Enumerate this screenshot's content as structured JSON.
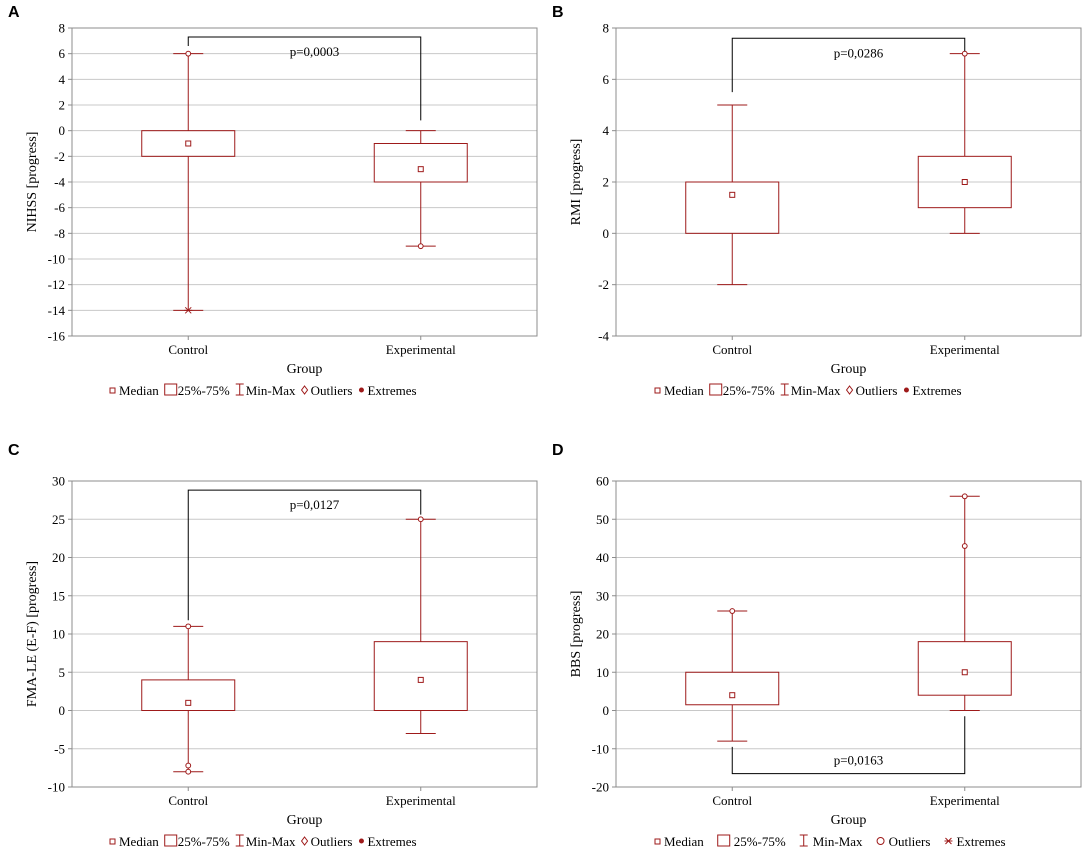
{
  "chart_data": [
    {
      "type": "boxplot",
      "panel": "A",
      "ylabel": "NIHSS [progress]",
      "xlabel": "Group",
      "categories": [
        "Control",
        "Experimental"
      ],
      "ylim": [
        -16,
        8
      ],
      "yticks": [
        -16,
        -14,
        -12,
        -10,
        -8,
        -6,
        -4,
        -2,
        0,
        2,
        4,
        6,
        8
      ],
      "grid": true,
      "boxes": [
        {
          "group": "Control",
          "median": -1,
          "q1": -2,
          "q3": 0,
          "min": -14,
          "max": 6
        },
        {
          "group": "Experimental",
          "median": -3,
          "q1": -4,
          "q3": -1,
          "min": -9,
          "max": 0
        }
      ],
      "outliers": [
        {
          "group": "Control",
          "value": 6
        },
        {
          "group": "Experimental",
          "value": -9
        }
      ],
      "extremes": [
        {
          "group": "Control",
          "value": -14
        }
      ],
      "bracket": {
        "text": "p=0,0003",
        "level": 7.3,
        "control_end": 6.6,
        "experimental_end": 0.8,
        "side": "top"
      },
      "legend": [
        "Median",
        "25%-75%",
        "Min-Max",
        "Outliers",
        "Extremes"
      ]
    },
    {
      "type": "boxplot",
      "panel": "B",
      "ylabel": "RMI [progress]",
      "xlabel": "Group",
      "categories": [
        "Control",
        "Experimental"
      ],
      "ylim": [
        -4,
        8
      ],
      "yticks": [
        -4,
        -2,
        0,
        2,
        4,
        6,
        8
      ],
      "grid": true,
      "boxes": [
        {
          "group": "Control",
          "median": 1.5,
          "q1": 0,
          "q3": 2,
          "min": -2,
          "max": 5
        },
        {
          "group": "Experimental",
          "median": 2,
          "q1": 1,
          "q3": 3,
          "min": 0,
          "max": 7
        }
      ],
      "outliers": [
        {
          "group": "Experimental",
          "value": 7
        }
      ],
      "extremes": [],
      "bracket": {
        "text": "p=0,0286",
        "level": 7.6,
        "control_end": 5.5,
        "experimental_end": 7.1,
        "side": "top"
      },
      "legend": [
        "Median",
        "25%-75%",
        "Min-Max",
        "Outliers",
        "Extremes"
      ]
    },
    {
      "type": "boxplot",
      "panel": "C",
      "ylabel": "FMA-LE (E-F) [progress]",
      "xlabel": "Group",
      "categories": [
        "Control",
        "Experimental"
      ],
      "ylim": [
        -10,
        30
      ],
      "yticks": [
        -10,
        -5,
        0,
        5,
        10,
        15,
        20,
        25,
        30
      ],
      "grid": true,
      "boxes": [
        {
          "group": "Control",
          "median": 1,
          "q1": 0,
          "q3": 4,
          "min": -8,
          "max": 11
        },
        {
          "group": "Experimental",
          "median": 4,
          "q1": 0,
          "q3": 9,
          "min": -3,
          "max": 25
        }
      ],
      "outliers": [
        {
          "group": "Control",
          "value": 11
        },
        {
          "group": "Control",
          "value": -7.2
        },
        {
          "group": "Control",
          "value": -8
        },
        {
          "group": "Experimental",
          "value": 25
        }
      ],
      "extremes": [],
      "bracket": {
        "text": "p=0,0127",
        "level": 28.8,
        "control_end": 11.8,
        "experimental_end": 25.6,
        "side": "top"
      },
      "legend": [
        "Median",
        "25%-75%",
        "Min-Max",
        "Outliers",
        "Extremes"
      ]
    },
    {
      "type": "boxplot",
      "panel": "D",
      "ylabel": "BBS [progress]",
      "xlabel": "Group",
      "categories": [
        "Control",
        "Experimental"
      ],
      "ylim": [
        -20,
        60
      ],
      "yticks": [
        -20,
        -10,
        0,
        10,
        20,
        30,
        40,
        50,
        60
      ],
      "grid": true,
      "boxes": [
        {
          "group": "Control",
          "median": 4,
          "q1": 1.5,
          "q3": 10,
          "min": -8,
          "max": 26
        },
        {
          "group": "Experimental",
          "median": 10,
          "q1": 4,
          "q3": 18,
          "min": 0,
          "max": 56
        }
      ],
      "outliers": [
        {
          "group": "Control",
          "value": 26
        },
        {
          "group": "Experimental",
          "value": 43
        },
        {
          "group": "Experimental",
          "value": 56
        }
      ],
      "extremes": [],
      "bracket": {
        "text": "p=0,0163",
        "level": -16.5,
        "control_end": -9.5,
        "experimental_end": -1.5,
        "side": "bottom"
      },
      "legend": [
        "Median",
        "25%-75%",
        "Min-Max",
        "Outliers",
        "Extremes"
      ]
    }
  ],
  "colors": {
    "box": "#9e1a1a",
    "grid": "#c8c8c8",
    "axis": "#8c8c8c",
    "bracket": "#000000",
    "text": "#000000"
  }
}
